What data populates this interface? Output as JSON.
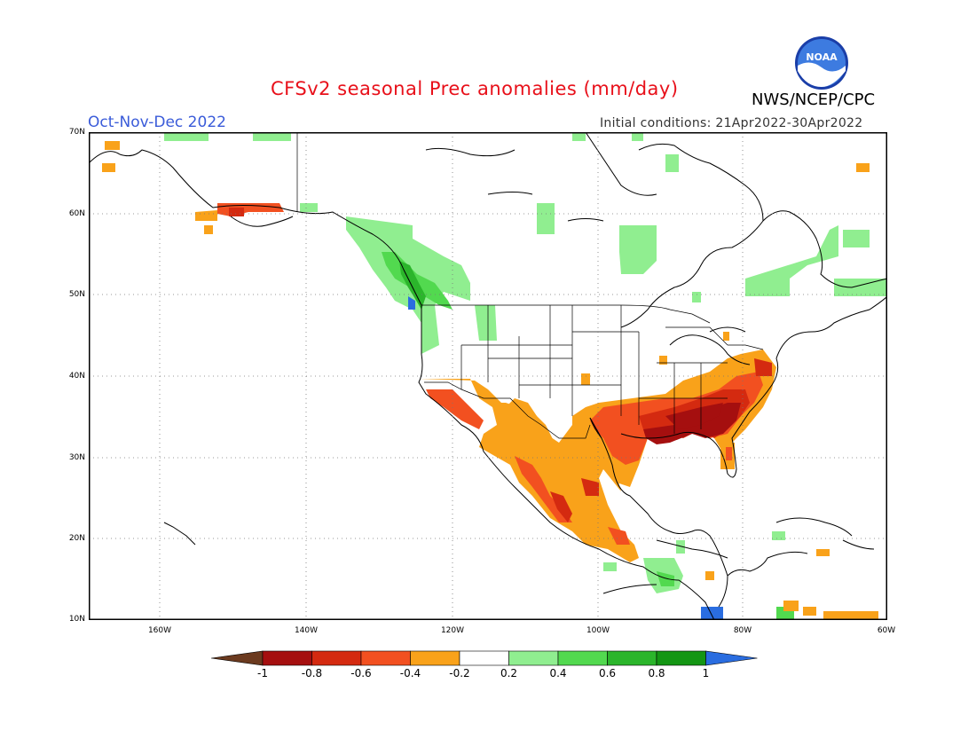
{
  "header": {
    "title": "CFSv2 seasonal Prec anomalies (mm/day)",
    "season": "Oct-Nov-Dec 2022",
    "initial_conditions": "Initial conditions: 21Apr2022-30Apr2022",
    "agency": "NWS/NCEP/CPC",
    "logo_text": "NOAA"
  },
  "map": {
    "lat_labels": [
      "70N",
      "60N",
      "50N",
      "40N",
      "30N",
      "20N",
      "10N"
    ],
    "lon_labels": [
      "160W",
      "140W",
      "120W",
      "100W",
      "80W",
      "60W"
    ]
  },
  "colorbar": {
    "labels": [
      "-1",
      "-0.8",
      "-0.6",
      "-0.4",
      "-0.2",
      "0.2",
      "0.4",
      "0.6",
      "0.8",
      "1"
    ],
    "colors": [
      "#6b3a1f",
      "#a50f0f",
      "#d42a10",
      "#f25020",
      "#f9a21a",
      "#ffffff",
      "#90ee90",
      "#52d94f",
      "#2bb52b",
      "#149614",
      "#2a6de0"
    ]
  }
}
